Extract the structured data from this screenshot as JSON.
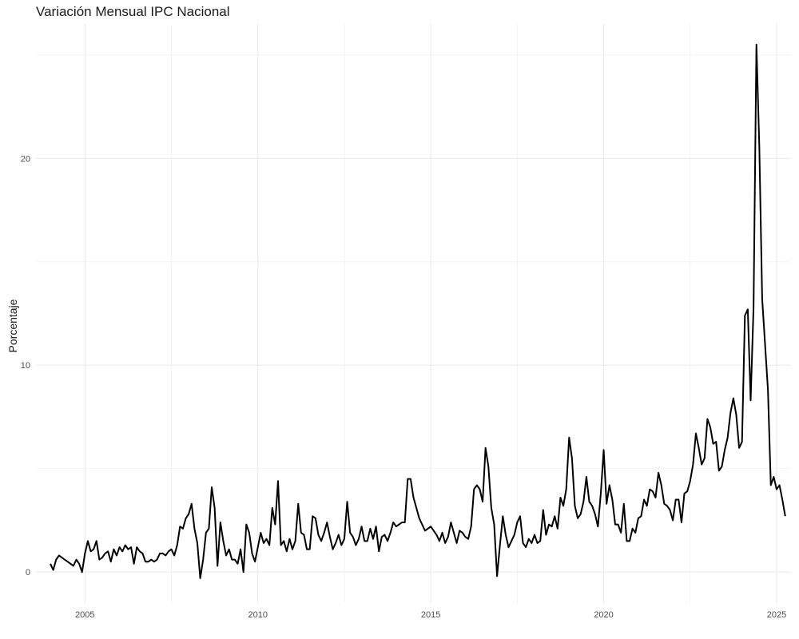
{
  "chart_data": {
    "type": "line",
    "title": "Variación Mensual IPC Nacional",
    "xlabel": "",
    "ylabel": "Porcentaje",
    "grid": true,
    "line_color": "#000000",
    "x_ticks": [
      "2005",
      "2010",
      "2015",
      "2020",
      "2025"
    ],
    "y_ticks": [
      "0",
      "10",
      "20"
    ],
    "xlim": [
      "2003-08",
      "2025-06"
    ],
    "ylim": [
      -1.5,
      26.5
    ],
    "series": [
      {
        "x_start": "2004-01",
        "frequency": "monthly",
        "values": [
          0.4,
          0.1,
          0.6,
          0.8,
          0.7,
          0.6,
          0.5,
          0.4,
          0.3,
          0.6,
          0.4,
          0.0,
          0.9,
          1.5,
          1.0,
          1.1,
          1.5,
          0.6,
          0.7,
          0.9,
          1.0,
          0.5,
          1.1,
          0.8,
          1.2,
          1.0,
          1.3,
          1.1,
          1.2,
          0.4,
          1.2,
          1.0,
          0.9,
          0.5,
          0.5,
          0.6,
          0.5,
          0.6,
          0.9,
          0.9,
          0.8,
          1.0,
          1.1,
          0.8,
          1.3,
          2.2,
          2.1,
          2.6,
          2.8,
          3.3,
          2.1,
          1.4,
          -0.3,
          0.6,
          1.9,
          2.1,
          4.1,
          3.1,
          0.3,
          2.4,
          1.5,
          0.8,
          1.1,
          0.6,
          0.6,
          0.4,
          1.1,
          0.0,
          2.3,
          1.9,
          0.9,
          0.5,
          1.2,
          1.9,
          1.4,
          1.6,
          1.3,
          3.1,
          2.3,
          4.4,
          1.3,
          1.5,
          1.0,
          1.6,
          1.1,
          1.5,
          3.3,
          1.9,
          1.8,
          1.1,
          1.1,
          2.7,
          2.6,
          1.8,
          1.5,
          1.9,
          2.4,
          1.7,
          1.1,
          1.4,
          1.8,
          1.3,
          1.6,
          3.4,
          1.9,
          1.7,
          1.3,
          1.6,
          2.2,
          1.5,
          1.5,
          2.1,
          1.6,
          2.2,
          1.0,
          1.7,
          1.8,
          1.5,
          1.9,
          2.4,
          2.2,
          2.3,
          2.4,
          2.4,
          4.5,
          4.5,
          3.6,
          3.1,
          2.6,
          2.3,
          2.0,
          2.1,
          2.2,
          2.0,
          1.8,
          1.5,
          1.9,
          1.4,
          1.7,
          2.4,
          1.9,
          1.4,
          2.0,
          1.9,
          1.7,
          1.6,
          2.2,
          4.0,
          4.2,
          4.0,
          3.4,
          6.0,
          5.1,
          3.1,
          2.3,
          -0.2,
          1.3,
          2.7,
          1.8,
          1.2,
          1.5,
          1.8,
          2.4,
          2.7,
          1.4,
          1.2,
          1.6,
          1.4,
          1.8,
          1.4,
          1.5,
          3.0,
          1.8,
          2.3,
          2.2,
          2.7,
          2.1,
          3.6,
          3.2,
          4.0,
          6.5,
          5.5,
          3.2,
          2.6,
          2.8,
          3.4,
          4.6,
          3.4,
          3.2,
          2.8,
          2.2,
          3.8,
          5.9,
          3.3,
          4.2,
          3.5,
          2.3,
          2.3,
          1.9,
          3.3,
          1.5,
          1.5,
          2.1,
          1.9,
          2.6,
          2.7,
          3.5,
          3.2,
          4.0,
          3.9,
          3.6,
          4.8,
          4.2,
          3.3,
          3.2,
          3.0,
          2.5,
          3.5,
          3.5,
          2.4,
          3.8,
          3.9,
          4.4,
          5.2,
          6.7,
          6.0,
          5.2,
          5.5,
          7.4,
          7.0,
          6.2,
          6.3,
          4.9,
          5.1,
          5.9,
          6.5,
          7.7,
          8.4,
          7.6,
          6.0,
          6.3,
          12.4,
          12.7,
          8.3,
          12.8,
          25.5,
          20.6,
          13.2,
          11.0,
          8.8,
          4.2,
          4.6,
          4.0,
          4.2,
          3.5,
          2.7
        ]
      }
    ]
  }
}
